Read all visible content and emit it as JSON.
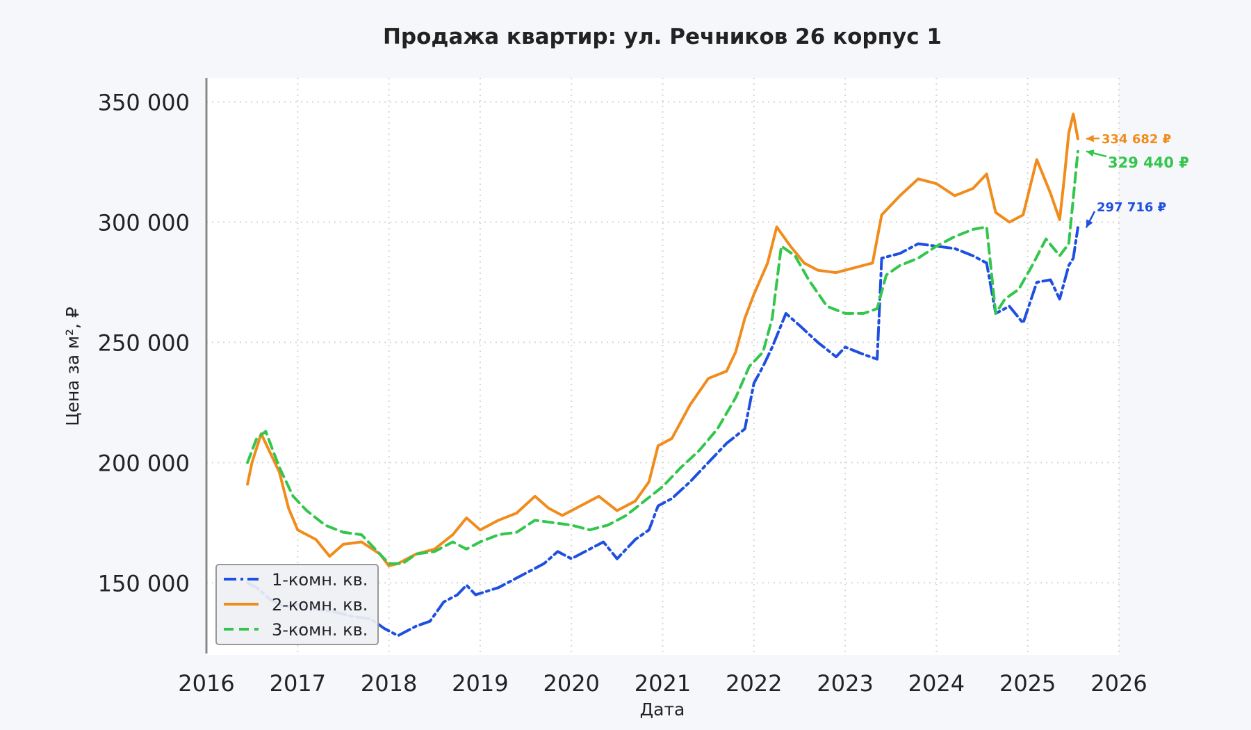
{
  "chart_data": {
    "type": "line",
    "title": "Продажа квартир: ул. Речников 26 корпус 1",
    "xlabel": "Дата",
    "ylabel": "Цена за м², ₽",
    "xlim": [
      2016,
      2026
    ],
    "ylim": [
      120000,
      360000
    ],
    "x_ticks": [
      2016,
      2017,
      2018,
      2019,
      2020,
      2021,
      2022,
      2023,
      2024,
      2025,
      2026
    ],
    "y_ticks": [
      150000,
      200000,
      250000,
      300000,
      350000
    ],
    "y_tick_labels": [
      "150 000",
      "200 000",
      "250 000",
      "300 000",
      "350 000"
    ],
    "grid": true,
    "legend_position": "bottom-left",
    "series": [
      {
        "name": "1-комн. кв.",
        "color": "#1f4fe0",
        "dash": "dashdot",
        "x": [
          2016.45,
          2016.55,
          2016.7,
          2016.85,
          2017.0,
          2017.2,
          2017.4,
          2017.6,
          2017.8,
          2017.95,
          2018.1,
          2018.3,
          2018.45,
          2018.6,
          2018.75,
          2018.85,
          2018.95,
          2019.2,
          2019.45,
          2019.7,
          2019.85,
          2020.0,
          2020.2,
          2020.35,
          2020.5,
          2020.7,
          2020.85,
          2020.95,
          2021.1,
          2021.3,
          2021.5,
          2021.7,
          2021.9,
          2022.0,
          2022.1,
          2022.2,
          2022.35,
          2022.5,
          2022.7,
          2022.9,
          2023.0,
          2023.2,
          2023.35,
          2023.4,
          2023.6,
          2023.8,
          2024.0,
          2024.2,
          2024.4,
          2024.55,
          2024.65,
          2024.8,
          2024.95,
          2025.1,
          2025.25,
          2025.35,
          2025.45,
          2025.5,
          2025.55
        ],
        "y": [
          150000,
          148000,
          143000,
          140000,
          141000,
          139000,
          138000,
          136000,
          135000,
          131000,
          128000,
          132000,
          134000,
          142000,
          145000,
          149000,
          145000,
          148000,
          153000,
          158000,
          163000,
          160000,
          164000,
          167000,
          160000,
          168000,
          172000,
          182000,
          185000,
          192000,
          200000,
          208000,
          214000,
          233000,
          240000,
          248000,
          262000,
          257000,
          250000,
          244000,
          248000,
          245000,
          243000,
          285000,
          287000,
          291000,
          290000,
          289000,
          286000,
          283000,
          262000,
          265000,
          258000,
          275000,
          276000,
          268000,
          282000,
          285000,
          297716
        ]
      },
      {
        "name": "2-комн. кв.",
        "color": "#f08c1c",
        "dash": "solid",
        "x": [
          2016.45,
          2016.5,
          2016.6,
          2016.7,
          2016.8,
          2016.9,
          2017.0,
          2017.2,
          2017.35,
          2017.5,
          2017.7,
          2017.9,
          2018.0,
          2018.1,
          2018.3,
          2018.5,
          2018.7,
          2018.85,
          2019.0,
          2019.2,
          2019.4,
          2019.6,
          2019.75,
          2019.9,
          2020.1,
          2020.3,
          2020.5,
          2020.7,
          2020.85,
          2020.95,
          2021.1,
          2021.3,
          2021.5,
          2021.7,
          2021.8,
          2021.9,
          2022.0,
          2022.15,
          2022.25,
          2022.4,
          2022.55,
          2022.7,
          2022.9,
          2023.1,
          2023.3,
          2023.4,
          2023.6,
          2023.8,
          2024.0,
          2024.2,
          2024.4,
          2024.55,
          2024.65,
          2024.8,
          2024.95,
          2025.1,
          2025.25,
          2025.35,
          2025.4,
          2025.45,
          2025.5,
          2025.55
        ],
        "y": [
          191000,
          200000,
          212000,
          204000,
          196000,
          181000,
          172000,
          168000,
          161000,
          166000,
          167000,
          162000,
          157000,
          158000,
          162000,
          164000,
          170000,
          177000,
          172000,
          176000,
          179000,
          186000,
          181000,
          178000,
          182000,
          186000,
          180000,
          184000,
          192000,
          207000,
          210000,
          224000,
          235000,
          238000,
          246000,
          260000,
          270000,
          283000,
          298000,
          290000,
          283000,
          280000,
          279000,
          281000,
          283000,
          303000,
          311000,
          318000,
          316000,
          311000,
          314000,
          320000,
          304000,
          300000,
          303000,
          326000,
          312000,
          301000,
          318000,
          337000,
          345000,
          334682
        ]
      },
      {
        "name": "3-комн. кв.",
        "color": "#33c64c",
        "dash": "dashed",
        "x": [
          2016.45,
          2016.55,
          2016.65,
          2016.8,
          2016.95,
          2017.1,
          2017.3,
          2017.5,
          2017.7,
          2017.85,
          2018.0,
          2018.15,
          2018.3,
          2018.5,
          2018.7,
          2018.85,
          2019.0,
          2019.2,
          2019.4,
          2019.6,
          2019.8,
          2020.0,
          2020.2,
          2020.4,
          2020.6,
          2020.8,
          2021.0,
          2021.2,
          2021.4,
          2021.6,
          2021.8,
          2021.95,
          2022.1,
          2022.2,
          2022.3,
          2022.45,
          2022.6,
          2022.8,
          2023.0,
          2023.2,
          2023.35,
          2023.45,
          2023.6,
          2023.8,
          2024.0,
          2024.2,
          2024.4,
          2024.55,
          2024.65,
          2024.75,
          2024.9,
          2025.05,
          2025.2,
          2025.35,
          2025.45,
          2025.5,
          2025.55
        ],
        "y": [
          200000,
          210000,
          213000,
          198000,
          186000,
          180000,
          174000,
          171000,
          170000,
          164000,
          158000,
          158000,
          162000,
          163000,
          167000,
          164000,
          167000,
          170000,
          171000,
          176000,
          175000,
          174000,
          172000,
          174000,
          178000,
          184000,
          190000,
          198000,
          205000,
          214000,
          227000,
          240000,
          246000,
          260000,
          290000,
          286000,
          276000,
          265000,
          262000,
          262000,
          264000,
          278000,
          282000,
          285000,
          290000,
          294000,
          297000,
          298000,
          262000,
          268000,
          272000,
          282000,
          293000,
          286000,
          291000,
          310000,
          329440
        ]
      }
    ],
    "annotations": [
      {
        "text": "334 682 ₽",
        "series": 1,
        "x": 2025.55,
        "y": 334682
      },
      {
        "text": "329 440 ₽",
        "series": 2,
        "x": 2025.55,
        "y": 329440
      },
      {
        "text": "297 716 ₽",
        "series": 0,
        "x": 2025.55,
        "y": 297716
      }
    ]
  }
}
